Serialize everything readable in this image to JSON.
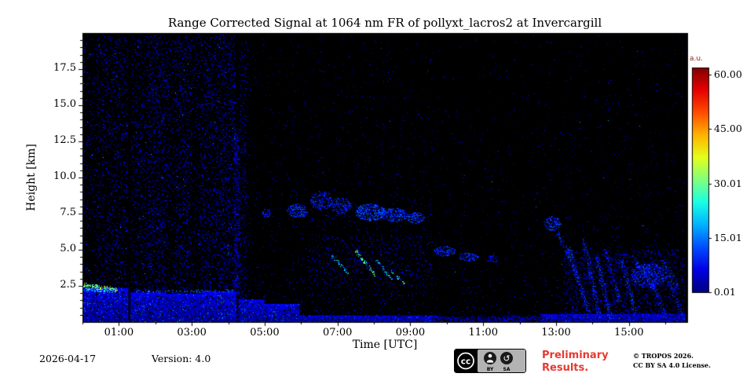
{
  "figure": {
    "footer": {
      "date": "2026-04-17",
      "version": "Version: 4.0",
      "preliminary_line1": "Preliminary",
      "preliminary_line2": "Results.",
      "copyright_line1": "© TROPOS 2026.",
      "copyright_line2": "CC BY SA 4.0 License.",
      "badge": {
        "cc": "cc",
        "by": "BY",
        "sa": "SA",
        "sa_icon": "↺"
      }
    },
    "colors": {
      "preliminary_red": "#e8392e",
      "axis": "#000000",
      "plot_background": "#000000",
      "page_background": "#ffffff",
      "colorbar_unit_label": "#8b2513"
    }
  },
  "chart_data": {
    "type": "heatmap",
    "title": "Range Corrected Signal at 1064 nm FR of pollyxt_lacros2 at Invercargill",
    "xlabel": "Time [UTC]",
    "ylabel": "Height [km]",
    "x_range_hours": [
      0,
      16.6
    ],
    "y_range_km": [
      0,
      20
    ],
    "x_ticks": [
      "01:00",
      "03:00",
      "05:00",
      "07:00",
      "09:00",
      "11:00",
      "13:00",
      "15:00"
    ],
    "x_tick_hours": [
      1,
      3,
      5,
      7,
      9,
      11,
      13,
      15
    ],
    "x_minor_step_hours": 1,
    "y_ticks": [
      "2.5",
      "5.0",
      "7.5",
      "10.0",
      "12.5",
      "15.0",
      "17.5"
    ],
    "y_tick_values": [
      2.5,
      5,
      7.5,
      10,
      12.5,
      15,
      17.5
    ],
    "y_minor_step_km": 0.5,
    "grid": false,
    "colorbar": {
      "label": "a.u.",
      "ticks": [
        "60.00",
        "45.00",
        "30.01",
        "15.01",
        "0.01"
      ],
      "tick_values": [
        60,
        45,
        30.01,
        15.01,
        0.01
      ],
      "range": [
        0.01,
        60
      ],
      "scale_max": 62,
      "gradient": [
        "#000080",
        "#0000e5",
        "#004cff",
        "#00b2ff",
        "#19ffe5",
        "#7fff7f",
        "#e5ff19",
        "#ffb200",
        "#ff4c00",
        "#e50000",
        "#800000"
      ]
    },
    "noise_regions": [
      {
        "t": [
          0.0,
          0.35
        ],
        "d": 0.05,
        "v": 6
      },
      {
        "t": [
          0.35,
          1.26
        ],
        "d": 0.085,
        "v": 6
      },
      {
        "t": [
          1.32,
          1.8
        ],
        "d": 0.08,
        "v": 6
      },
      {
        "t": [
          1.8,
          2.25
        ],
        "d": 0.13,
        "v": 6
      },
      {
        "t": [
          2.25,
          2.55
        ],
        "d": 0.07,
        "v": 6
      },
      {
        "t": [
          2.55,
          3.0
        ],
        "d": 0.12,
        "v": 6
      },
      {
        "t": [
          3.0,
          3.25
        ],
        "d": 0.06,
        "v": 6
      },
      {
        "t": [
          3.25,
          3.7
        ],
        "d": 0.11,
        "v": 6
      },
      {
        "t": [
          3.7,
          4.2
        ],
        "d": 0.135,
        "v": 6
      },
      {
        "t": [
          4.2,
          4.6
        ],
        "d": 0.05,
        "v": 5,
        "falloff": 8
      },
      {
        "t": [
          4.6,
          6.2
        ],
        "d": 0.03,
        "v": 5,
        "falloff": 7
      },
      {
        "t": [
          6.2,
          9.6
        ],
        "d": 0.045,
        "v": 5,
        "falloff": 5.5
      },
      {
        "t": [
          9.6,
          12.4
        ],
        "d": 0.022,
        "v": 5,
        "falloff": 5.5
      },
      {
        "t": [
          12.4,
          16.55
        ],
        "d": 0.032,
        "v": 5,
        "falloff": 5.5
      }
    ],
    "features": [
      {
        "kind": "gap",
        "t": [
          1.26,
          1.32
        ],
        "h": [
          0,
          19.9
        ]
      },
      {
        "kind": "fill",
        "t": [
          0.0,
          1.26
        ],
        "h": [
          0.0,
          2.35
        ],
        "v": 7
      },
      {
        "kind": "fill",
        "t": [
          1.32,
          2.3
        ],
        "h": [
          0.0,
          2.05
        ],
        "v": 7
      },
      {
        "kind": "fill",
        "t": [
          2.3,
          3.3
        ],
        "h": [
          0.0,
          1.95
        ],
        "v": 6.5
      },
      {
        "kind": "fill",
        "t": [
          3.3,
          4.22
        ],
        "h": [
          0.0,
          2.1
        ],
        "v": 7
      },
      {
        "kind": "line",
        "p1": [
          0.03,
          2.52
        ],
        "p2": [
          0.95,
          2.18
        ],
        "th": 0.22,
        "v": 30,
        "d": 1.2
      },
      {
        "kind": "line",
        "p1": [
          0.03,
          2.28
        ],
        "p2": [
          0.6,
          2.08
        ],
        "th": 0.12,
        "v": 18,
        "d": 0.8
      },
      {
        "kind": "line",
        "p1": [
          1.45,
          2.1
        ],
        "p2": [
          4.15,
          2.15
        ],
        "th": 0.14,
        "v": 13,
        "d": 0.4
      },
      {
        "kind": "dots",
        "t": [
          4.17,
          4.32
        ],
        "h": [
          0.1,
          13.5
        ],
        "v": 6,
        "d": 0.3
      },
      {
        "kind": "dots",
        "t": [
          4.32,
          4.5
        ],
        "h": [
          0.1,
          19.5
        ],
        "v": 5,
        "d": 0.1
      },
      {
        "kind": "fill",
        "t": [
          4.3,
          5.0
        ],
        "h": [
          0.0,
          1.55
        ],
        "v": 7
      },
      {
        "kind": "fill",
        "t": [
          5.0,
          5.95
        ],
        "h": [
          0.0,
          1.25
        ],
        "v": 7
      },
      {
        "kind": "fill",
        "t": [
          5.95,
          9.7
        ],
        "h": [
          0.0,
          0.45
        ],
        "v": 6
      },
      {
        "kind": "dots",
        "t": [
          9.7,
          12.6
        ],
        "h": [
          0.0,
          0.4
        ],
        "v": 5,
        "d": 0.45
      },
      {
        "kind": "fill",
        "t": [
          12.6,
          16.55
        ],
        "h": [
          0.0,
          0.55
        ],
        "v": 6
      },
      {
        "kind": "blob",
        "c": [
          5.05,
          7.55
        ],
        "r": [
          0.12,
          0.3
        ],
        "v": 9,
        "d": 0.5
      },
      {
        "kind": "blob",
        "c": [
          5.9,
          7.7
        ],
        "r": [
          0.28,
          0.5
        ],
        "v": 10,
        "d": 0.55
      },
      {
        "kind": "blob",
        "c": [
          6.55,
          8.4
        ],
        "r": [
          0.3,
          0.7
        ],
        "v": 9,
        "d": 0.35
      },
      {
        "kind": "blob",
        "c": [
          7.1,
          8.05
        ],
        "r": [
          0.28,
          0.6
        ],
        "v": 9,
        "d": 0.4
      },
      {
        "kind": "blob",
        "c": [
          7.9,
          7.6
        ],
        "r": [
          0.42,
          0.6
        ],
        "v": 11,
        "d": 0.6
      },
      {
        "kind": "blob",
        "c": [
          8.55,
          7.4
        ],
        "r": [
          0.35,
          0.5
        ],
        "v": 10,
        "d": 0.55
      },
      {
        "kind": "blob",
        "c": [
          9.15,
          7.2
        ],
        "r": [
          0.25,
          0.4
        ],
        "v": 10,
        "d": 0.5
      },
      {
        "kind": "dots",
        "t": [
          6.2,
          9.6
        ],
        "h": [
          2.4,
          6.0
        ],
        "v": 6,
        "d": 0.05
      },
      {
        "kind": "line",
        "p1": [
          6.85,
          4.6
        ],
        "p2": [
          7.3,
          3.35
        ],
        "th": 0.14,
        "v": 20,
        "d": 0.7
      },
      {
        "kind": "line",
        "p1": [
          7.5,
          4.9
        ],
        "p2": [
          8.05,
          3.2
        ],
        "th": 0.14,
        "v": 25,
        "d": 0.7
      },
      {
        "kind": "line",
        "p1": [
          8.05,
          4.35
        ],
        "p2": [
          8.5,
          2.95
        ],
        "th": 0.12,
        "v": 19,
        "d": 0.6
      },
      {
        "kind": "line",
        "p1": [
          8.45,
          3.6
        ],
        "p2": [
          8.85,
          2.6
        ],
        "th": 0.11,
        "v": 23,
        "d": 0.6
      },
      {
        "kind": "blob",
        "c": [
          9.95,
          4.9
        ],
        "r": [
          0.3,
          0.35
        ],
        "v": 9,
        "d": 0.5
      },
      {
        "kind": "blob",
        "c": [
          10.6,
          4.5
        ],
        "r": [
          0.28,
          0.3
        ],
        "v": 9,
        "d": 0.45
      },
      {
        "kind": "blob",
        "c": [
          11.25,
          4.35
        ],
        "r": [
          0.18,
          0.25
        ],
        "v": 8,
        "d": 0.35
      },
      {
        "kind": "blob",
        "c": [
          12.9,
          6.8
        ],
        "r": [
          0.22,
          0.5
        ],
        "v": 10,
        "d": 0.5
      },
      {
        "kind": "dots",
        "t": [
          13.2,
          16.55
        ],
        "h": [
          0.0,
          5.0
        ],
        "v": 6,
        "d": 0.1
      },
      {
        "kind": "line",
        "p1": [
          13.05,
          6.2
        ],
        "p2": [
          13.6,
          3.0
        ],
        "th": 0.2,
        "v": 9,
        "d": 0.55
      },
      {
        "kind": "line",
        "p1": [
          13.35,
          5.2
        ],
        "p2": [
          13.9,
          0.6
        ],
        "th": 0.2,
        "v": 10,
        "d": 0.6
      },
      {
        "kind": "line",
        "p1": [
          13.75,
          5.8
        ],
        "p2": [
          14.2,
          0.3
        ],
        "th": 0.22,
        "v": 9,
        "d": 0.6
      },
      {
        "kind": "line",
        "p1": [
          14.1,
          4.6
        ],
        "p2": [
          14.5,
          0.2
        ],
        "th": 0.2,
        "v": 10,
        "d": 0.6
      },
      {
        "kind": "line",
        "p1": [
          14.35,
          5.1
        ],
        "p2": [
          14.75,
          1.4
        ],
        "th": 0.18,
        "v": 9,
        "d": 0.55
      },
      {
        "kind": "line",
        "p1": [
          14.8,
          4.3
        ],
        "p2": [
          15.2,
          0.4
        ],
        "th": 0.2,
        "v": 10,
        "d": 0.6
      },
      {
        "kind": "blob",
        "c": [
          15.55,
          3.2
        ],
        "r": [
          0.5,
          0.85
        ],
        "v": 9,
        "d": 0.4
      },
      {
        "kind": "line",
        "p1": [
          15.1,
          4.6
        ],
        "p2": [
          15.7,
          2.2
        ],
        "th": 0.2,
        "v": 10,
        "d": 0.55
      },
      {
        "kind": "line",
        "p1": [
          15.5,
          3.8
        ],
        "p2": [
          16.0,
          0.35
        ],
        "th": 0.2,
        "v": 9,
        "d": 0.55
      },
      {
        "kind": "line",
        "p1": [
          15.9,
          4.4
        ],
        "p2": [
          16.35,
          2.4
        ],
        "th": 0.2,
        "v": 10,
        "d": 0.5
      },
      {
        "kind": "line",
        "p1": [
          16.05,
          3.2
        ],
        "p2": [
          16.45,
          0.5
        ],
        "th": 0.18,
        "v": 9,
        "d": 0.5
      }
    ]
  }
}
